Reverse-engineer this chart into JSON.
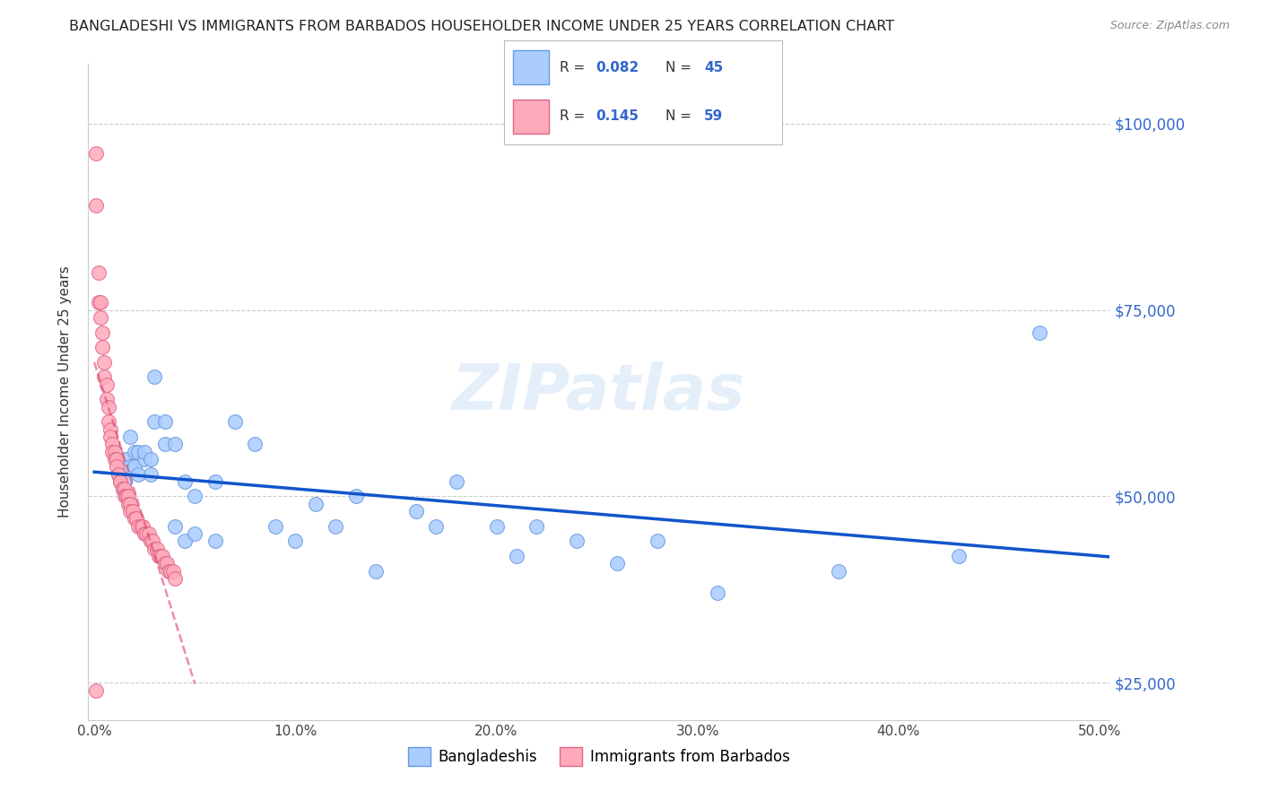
{
  "title": "BANGLADESHI VS IMMIGRANTS FROM BARBADOS HOUSEHOLDER INCOME UNDER 25 YEARS CORRELATION CHART",
  "source": "Source: ZipAtlas.com",
  "ylabel": "Householder Income Under 25 years",
  "xlabel_ticks": [
    "0.0%",
    "10.0%",
    "20.0%",
    "30.0%",
    "40.0%",
    "50.0%"
  ],
  "xlabel_vals": [
    0.0,
    0.1,
    0.2,
    0.3,
    0.4,
    0.5
  ],
  "ylabel_ticks": [
    "$25,000",
    "$50,000",
    "$75,000",
    "$100,000"
  ],
  "ylabel_vals": [
    25000,
    50000,
    75000,
    100000
  ],
  "ylim": [
    20000,
    108000
  ],
  "xlim": [
    -0.003,
    0.505
  ],
  "blue_R": "0.082",
  "blue_N": "45",
  "pink_R": "0.145",
  "pink_N": "59",
  "blue_color": "#aaccff",
  "pink_color": "#ffaabb",
  "blue_edge": "#6699dd",
  "pink_edge": "#dd6688",
  "trend_blue": "#1155cc",
  "trend_pink": "#dd4466",
  "watermark": "ZIPatlas",
  "blue_x": [
    0.015,
    0.015,
    0.018,
    0.018,
    0.02,
    0.02,
    0.022,
    0.022,
    0.025,
    0.025,
    0.028,
    0.028,
    0.03,
    0.03,
    0.035,
    0.035,
    0.04,
    0.04,
    0.045,
    0.045,
    0.05,
    0.05,
    0.06,
    0.06,
    0.07,
    0.08,
    0.09,
    0.1,
    0.11,
    0.12,
    0.13,
    0.14,
    0.16,
    0.17,
    0.18,
    0.2,
    0.21,
    0.22,
    0.24,
    0.26,
    0.28,
    0.31,
    0.37,
    0.43,
    0.47
  ],
  "blue_y": [
    55000,
    52000,
    58000,
    54000,
    56000,
    54000,
    56000,
    53000,
    55000,
    56000,
    55000,
    53000,
    66000,
    60000,
    60000,
    57000,
    57000,
    46000,
    52000,
    44000,
    50000,
    45000,
    52000,
    44000,
    60000,
    57000,
    46000,
    44000,
    49000,
    46000,
    50000,
    40000,
    48000,
    46000,
    52000,
    46000,
    42000,
    46000,
    44000,
    41000,
    44000,
    37000,
    40000,
    42000,
    72000
  ],
  "pink_x": [
    0.001,
    0.001,
    0.002,
    0.002,
    0.003,
    0.003,
    0.004,
    0.004,
    0.005,
    0.005,
    0.006,
    0.006,
    0.007,
    0.007,
    0.008,
    0.008,
    0.009,
    0.009,
    0.01,
    0.01,
    0.011,
    0.011,
    0.012,
    0.012,
    0.013,
    0.013,
    0.014,
    0.014,
    0.015,
    0.015,
    0.016,
    0.016,
    0.017,
    0.017,
    0.018,
    0.018,
    0.019,
    0.02,
    0.021,
    0.022,
    0.023,
    0.024,
    0.025,
    0.026,
    0.027,
    0.028,
    0.029,
    0.03,
    0.031,
    0.032,
    0.033,
    0.034,
    0.035,
    0.036,
    0.037,
    0.038,
    0.039,
    0.04,
    0.001
  ],
  "pink_y": [
    96000,
    89000,
    80000,
    76000,
    76000,
    74000,
    72000,
    70000,
    68000,
    66000,
    65000,
    63000,
    62000,
    60000,
    59000,
    58000,
    57000,
    56000,
    56000,
    55000,
    55000,
    54000,
    53000,
    53000,
    52000,
    52000,
    51000,
    51000,
    51000,
    50000,
    50000,
    50000,
    50000,
    49000,
    49000,
    48000,
    48000,
    47000,
    47000,
    46000,
    46000,
    46000,
    45000,
    45000,
    45000,
    44000,
    44000,
    43000,
    43000,
    42000,
    42000,
    42000,
    41000,
    41000,
    40000,
    40000,
    40000,
    39000,
    24000
  ]
}
